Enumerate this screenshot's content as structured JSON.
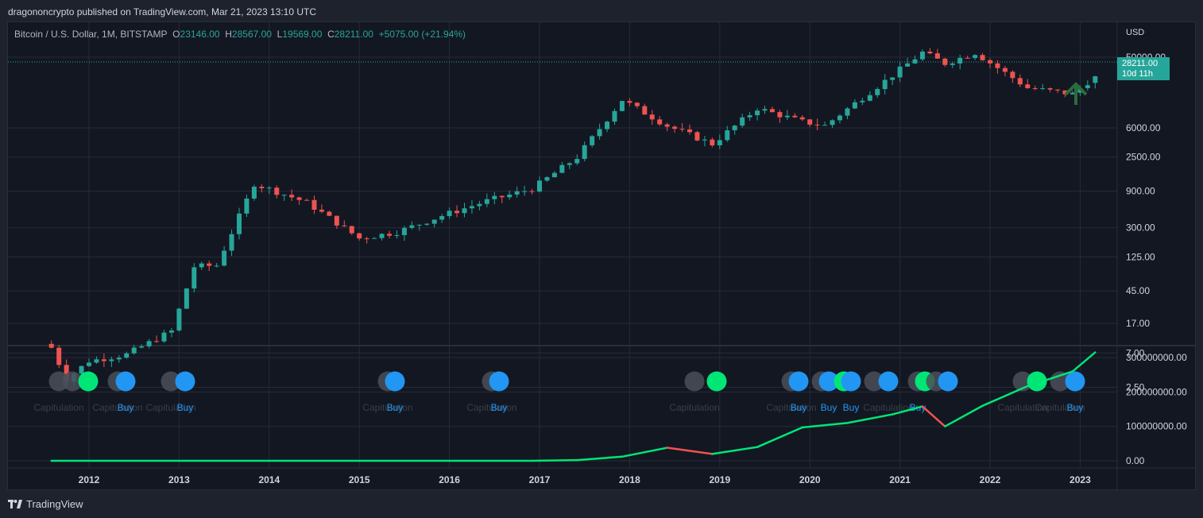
{
  "header": {
    "publisher_line": "dragononcrypto published on TradingView.com, Mar 21, 2023 13:10 UTC"
  },
  "legend": {
    "symbol": "Bitcoin / U.S. Dollar, 1M, BITSTAMP",
    "open_label": "O",
    "open": "23146.00",
    "high_label": "H",
    "high": "28567.00",
    "low_label": "L",
    "low": "19569.00",
    "close_label": "C",
    "close": "28211.00",
    "change": "+5075.00 (+21.94%)"
  },
  "price_badge": {
    "price": "28211.00",
    "countdown": "10d 11h"
  },
  "footer": {
    "brand": "TradingView"
  },
  "colors": {
    "up": "#26a69a",
    "down": "#ef5350",
    "background": "#131722",
    "grid": "#262b38",
    "signal_green": "#00e676",
    "signal_blue": "#2196f3",
    "signal_grey": "#4a4f59",
    "arrow": "#2e6b3a"
  },
  "icons": {
    "arrow": "up-arrow-icon",
    "logo": "tradingview-logo-icon"
  },
  "chart_data": [
    {
      "type": "candlestick",
      "title": "Bitcoin / U.S. Dollar, 1M, BITSTAMP",
      "y_scale": "log",
      "currency_label": "USD",
      "y_ticks": [
        "50000.00",
        "6000.00",
        "2500.00",
        "900.00",
        "300.00",
        "125.00",
        "45.00",
        "17.00",
        "7.00",
        "2.50"
      ],
      "x_ticks": [
        "2012",
        "2013",
        "2014",
        "2015",
        "2016",
        "2017",
        "2018",
        "2019",
        "2020",
        "2021",
        "2022",
        "2023"
      ],
      "last_price": 28211,
      "approx_monthly_close_path": [
        {
          "date": "2011-08",
          "close": 8.2
        },
        {
          "date": "2011-10",
          "close": 3.2
        },
        {
          "date": "2012-01",
          "close": 5.5
        },
        {
          "date": "2012-06",
          "close": 6.7
        },
        {
          "date": "2012-12",
          "close": 13.5
        },
        {
          "date": "2013-03",
          "close": 93
        },
        {
          "date": "2013-06",
          "close": 97
        },
        {
          "date": "2013-11",
          "close": 1120
        },
        {
          "date": "2014-06",
          "close": 640
        },
        {
          "date": "2015-01",
          "close": 218
        },
        {
          "date": "2015-06",
          "close": 263
        },
        {
          "date": "2015-12",
          "close": 430
        },
        {
          "date": "2016-06",
          "close": 670
        },
        {
          "date": "2016-12",
          "close": 963
        },
        {
          "date": "2017-06",
          "close": 2480
        },
        {
          "date": "2017-12",
          "close": 13860
        },
        {
          "date": "2018-06",
          "close": 6390
        },
        {
          "date": "2018-12",
          "close": 3700
        },
        {
          "date": "2019-06",
          "close": 10800
        },
        {
          "date": "2019-12",
          "close": 7200
        },
        {
          "date": "2020-03",
          "close": 6420
        },
        {
          "date": "2020-12",
          "close": 28990
        },
        {
          "date": "2021-04",
          "close": 57700
        },
        {
          "date": "2021-07",
          "close": 41500
        },
        {
          "date": "2021-11",
          "close": 57000
        },
        {
          "date": "2022-06",
          "close": 19900
        },
        {
          "date": "2022-12",
          "close": 16540
        },
        {
          "date": "2023-03",
          "close": 28211
        }
      ]
    },
    {
      "type": "line",
      "y_ticks": [
        "300000000.00",
        "200000000.00",
        "100000000.00",
        "0.00"
      ],
      "signal_labels": [
        "Capitulation",
        "Capitulation",
        "Buy",
        "Capitulation",
        "Buy",
        "Capitulation",
        "Buy",
        "Capitulation",
        "Buy",
        "Capitulation",
        "Capitulation",
        "Buy",
        "Buy",
        "Buy",
        "Capitulation",
        "Buy",
        "Capitulation",
        "Capitulation",
        "Buy"
      ],
      "approx_series": [
        {
          "date": "2011-08",
          "value": 0
        },
        {
          "date": "2016-12",
          "value": 0
        },
        {
          "date": "2017-06",
          "value": 2000000
        },
        {
          "date": "2017-12",
          "value": 12000000
        },
        {
          "date": "2018-06",
          "value": 38000000
        },
        {
          "date": "2018-12",
          "value": 20000000
        },
        {
          "date": "2019-06",
          "value": 40000000
        },
        {
          "date": "2019-12",
          "value": 97000000
        },
        {
          "date": "2020-06",
          "value": 110000000
        },
        {
          "date": "2020-12",
          "value": 135000000
        },
        {
          "date": "2021-04",
          "value": 158000000
        },
        {
          "date": "2021-07",
          "value": 100000000
        },
        {
          "date": "2021-12",
          "value": 160000000
        },
        {
          "date": "2022-06",
          "value": 217000000
        },
        {
          "date": "2022-12",
          "value": 260000000
        },
        {
          "date": "2023-03",
          "value": 315000000
        }
      ]
    }
  ]
}
